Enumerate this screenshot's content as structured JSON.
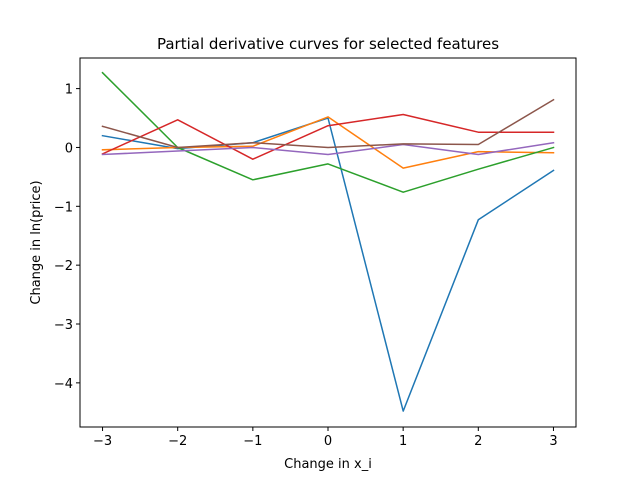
{
  "chart_data": {
    "type": "line",
    "title": "Partial derivative curves for selected features",
    "xlabel": "Change in x_i",
    "ylabel": "Change in ln(price)",
    "x": [
      -3,
      -2,
      -1,
      0,
      1,
      2,
      3
    ],
    "xlim": [
      -3.3,
      3.3
    ],
    "ylim": [
      -4.75,
      1.52
    ],
    "xticks": [
      -3,
      -2,
      -1,
      0,
      1,
      2,
      3
    ],
    "yticks": [
      1,
      0,
      -1,
      -2,
      -3,
      -4
    ],
    "xtick_labels": [
      "−3",
      "−2",
      "−1",
      "0",
      "1",
      "2",
      "3"
    ],
    "ytick_labels": [
      "1",
      "0",
      "−1",
      "−2",
      "−3",
      "−4"
    ],
    "grid": false,
    "legend": "none",
    "series": [
      {
        "color": "#1f77b4",
        "values": [
          0.2,
          -0.02,
          0.08,
          0.5,
          -4.48,
          -1.23,
          -0.39
        ]
      },
      {
        "color": "#ff7f0e",
        "values": [
          -0.04,
          0.0,
          0.02,
          0.52,
          -0.35,
          -0.07,
          -0.09
        ]
      },
      {
        "color": "#2ca02c",
        "values": [
          1.27,
          0.0,
          -0.55,
          -0.28,
          -0.76,
          -0.37,
          0.0
        ]
      },
      {
        "color": "#d62728",
        "values": [
          -0.11,
          0.47,
          -0.2,
          0.37,
          0.56,
          0.26,
          0.26
        ]
      },
      {
        "color": "#9467bd",
        "values": [
          -0.12,
          -0.06,
          0.0,
          -0.12,
          0.05,
          -0.12,
          0.08
        ]
      },
      {
        "color": "#8c564b",
        "values": [
          0.36,
          0.0,
          0.08,
          0.0,
          0.06,
          0.05,
          0.81
        ]
      }
    ]
  }
}
